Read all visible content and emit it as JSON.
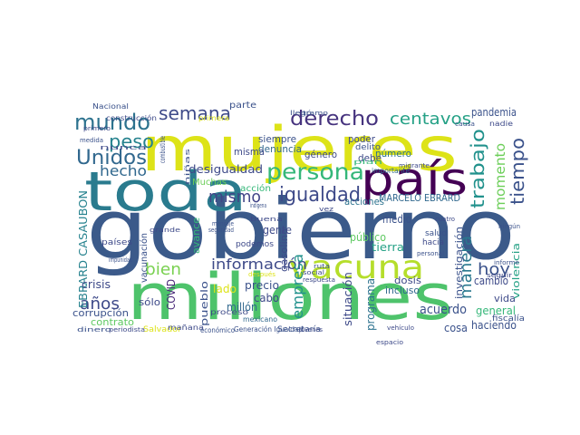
{
  "chart_data": {
    "type": "wordcloud",
    "words": [
      {
        "text": "gobierno",
        "color": "#3b5a8a"
      },
      {
        "text": "millones",
        "color": "#4ec36b"
      },
      {
        "text": "mujeres",
        "color": "#dde318"
      },
      {
        "text": "toda",
        "color": "#2a7b8e"
      },
      {
        "text": "país",
        "color": "#440154"
      },
      {
        "text": "vacuna",
        "color": "#b5de2b"
      },
      {
        "text": "persona",
        "color": "#35b779"
      },
      {
        "text": "mundo",
        "color": "#2c728e"
      },
      {
        "text": "Unidos",
        "color": "#31688e"
      },
      {
        "text": "derecho",
        "color": "#46337e"
      },
      {
        "text": "centavos",
        "color": "#25a186"
      },
      {
        "text": "semana",
        "color": "#3e4a89"
      },
      {
        "text": "peso",
        "color": "#26828e"
      },
      {
        "text": "igualdad",
        "color": "#3e4a89"
      },
      {
        "text": "mismo",
        "color": "#414487"
      },
      {
        "text": "trabajo",
        "color": "#21918c"
      },
      {
        "text": "tiempo",
        "color": "#3b528b"
      },
      {
        "text": "momento",
        "color": "#6cce59"
      },
      {
        "text": "hoy",
        "color": "#3b528b"
      },
      {
        "text": "bien",
        "color": "#7ad151"
      },
      {
        "text": "información",
        "color": "#3e4a89"
      },
      {
        "text": "años",
        "color": "#3e4a89"
      },
      {
        "text": "hecho",
        "color": "#31688e"
      },
      {
        "text": "empresa",
        "color": "#21918c"
      },
      {
        "text": "manera",
        "color": "#2a788e"
      },
      {
        "text": "pandemia",
        "color": "#3b528b"
      },
      {
        "text": "desigualdad",
        "color": "#3e4a89"
      },
      {
        "text": "EBRARD CASAUBON",
        "color": "#26828e"
      },
      {
        "text": "MARCELO EBRARD",
        "color": "#31688e"
      },
      {
        "text": "acciones",
        "color": "#2c728e"
      },
      {
        "text": "dosis",
        "color": "#3e4a89"
      },
      {
        "text": "incluso",
        "color": "#31688e"
      },
      {
        "text": "crisis",
        "color": "#3e4a89"
      },
      {
        "text": "corrupción",
        "color": "#3b528b"
      },
      {
        "text": "contrato",
        "color": "#5ec962"
      },
      {
        "text": "acuerdo",
        "color": "#3b528b"
      },
      {
        "text": "haciendo",
        "color": "#3b528b"
      },
      {
        "text": "general",
        "color": "#35b779"
      },
      {
        "text": "cambio",
        "color": "#3e4a89"
      },
      {
        "text": "cosa",
        "color": "#3b528b"
      },
      {
        "text": "situación",
        "color": "#3e4a89"
      },
      {
        "text": "programa",
        "color": "#2c728e"
      },
      {
        "text": "precio",
        "color": "#3b528b"
      },
      {
        "text": "cabo",
        "color": "#3e4a89"
      },
      {
        "text": "millón",
        "color": "#31688e"
      },
      {
        "text": "COVID",
        "color": "#482878"
      },
      {
        "text": "vacunación",
        "color": "#3b528b"
      },
      {
        "text": "gente",
        "color": "#3e4a89"
      },
      {
        "text": "público",
        "color": "#5ec962"
      },
      {
        "text": "tierra",
        "color": "#25a186"
      },
      {
        "text": "medio",
        "color": "#3b528b"
      },
      {
        "text": "vida",
        "color": "#3e4a89"
      },
      {
        "text": "fiscalía",
        "color": "#3b528b"
      },
      {
        "text": "parte",
        "color": "#3b528b"
      },
      {
        "text": "denuncia",
        "color": "#31688e"
      },
      {
        "text": "siempre",
        "color": "#3b528b"
      },
      {
        "text": "género",
        "color": "#3e4a89"
      },
      {
        "text": "número",
        "color": "#2c728e"
      },
      {
        "text": "debe",
        "color": "#3e4a89"
      },
      {
        "text": "poder",
        "color": "#3e4a89"
      },
      {
        "text": "delito",
        "color": "#3b528b"
      },
      {
        "text": "importante",
        "color": "#31688e"
      },
      {
        "text": "Muchas",
        "color": "#6cce59"
      },
      {
        "text": "acción",
        "color": "#35b779"
      },
      {
        "text": "sólo",
        "color": "#3e4a89"
      },
      {
        "text": "lado",
        "color": "#dde318"
      },
      {
        "text": "misma",
        "color": "#3e4a89"
      },
      {
        "text": "avance",
        "color": "#35b779"
      },
      {
        "text": "gasolina",
        "color": "#3e4a89"
      },
      {
        "text": "pueblo",
        "color": "#3b528b"
      },
      {
        "text": "violencia",
        "color": "#25a186"
      },
      {
        "text": "investigación",
        "color": "#3b528b"
      },
      {
        "text": "países",
        "color": "#3e4a89"
      },
      {
        "text": "podemos",
        "color": "#3e4a89"
      },
      {
        "text": "Salvador",
        "color": "#dde318"
      },
      {
        "text": "Secretaría",
        "color": "#3b528b"
      },
      {
        "text": "Generación Igualdad",
        "color": "#3b528b"
      },
      {
        "text": "mexicano",
        "color": "#31688e"
      },
      {
        "text": "respuesta",
        "color": "#3e4a89"
      },
      {
        "text": "social",
        "color": "#3e4a89"
      },
      {
        "text": "ruta",
        "color": "#3b528b"
      },
      {
        "text": "después",
        "color": "#dde318"
      },
      {
        "text": "salud",
        "color": "#3b528b"
      },
      {
        "text": "hacia",
        "color": "#3e4a89"
      },
      {
        "text": "Nacional",
        "color": "#3b528b"
      },
      {
        "text": "construcción",
        "color": "#3e4a89"
      },
      {
        "text": "primera",
        "color": "#dde318"
      },
      {
        "text": "llegó",
        "color": "#3b528b"
      },
      {
        "text": "causa",
        "color": "#3b528b"
      },
      {
        "text": "nadie",
        "color": "#3e4a89"
      },
      {
        "text": "informe",
        "color": "#3b528b"
      },
      {
        "text": "seguir",
        "color": "#3e4a89"
      },
      {
        "text": "primero",
        "color": "#3e4a89"
      },
      {
        "text": "medida",
        "color": "#3b528b"
      },
      {
        "text": "nunca",
        "color": "#3e4a89"
      },
      {
        "text": "combustible",
        "color": "#3b528b"
      },
      {
        "text": "niñas",
        "color": "#3b528b"
      },
      {
        "text": "proceso",
        "color": "#3e4a89"
      },
      {
        "text": "seguridad",
        "color": "#3b528b"
      },
      {
        "text": "mañana",
        "color": "#3e4a89"
      },
      {
        "text": "económico",
        "color": "#3b528b"
      },
      {
        "text": "vehículo",
        "color": "#3e4a89"
      },
      {
        "text": "dinero",
        "color": "#3b528b"
      },
      {
        "text": "periodista",
        "color": "#3e4a89"
      },
      {
        "text": "impunidad",
        "color": "#3b528b"
      },
      {
        "text": "grande",
        "color": "#3e4a89"
      },
      {
        "text": "mensaje",
        "color": "#3b528b"
      },
      {
        "text": "buena",
        "color": "#3e4a89"
      },
      {
        "text": "indígena",
        "color": "#3b528b"
      },
      {
        "text": "vez",
        "color": "#3e4a89"
      },
      {
        "text": "plan",
        "color": "#35b779"
      },
      {
        "text": "migrante",
        "color": "#3e4a89"
      },
      {
        "text": "personal",
        "color": "#3b528b"
      },
      {
        "text": "jóvenes",
        "color": "#3e4a89"
      },
      {
        "text": "ningún",
        "color": "#3b528b"
      },
      {
        "text": "cuatro",
        "color": "#3e4a89"
      },
      {
        "text": "tramo",
        "color": "#3b528b"
      },
      {
        "text": "espacio",
        "color": "#3e4a89"
      }
    ]
  }
}
